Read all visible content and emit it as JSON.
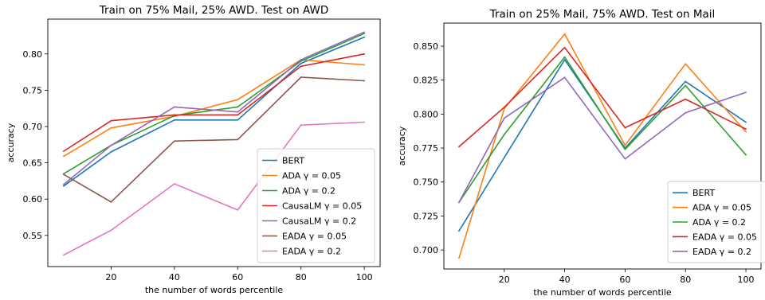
{
  "chart_data": [
    {
      "type": "line",
      "title": "Train on 75% Mail, 25% AWD. Test on AWD",
      "xlabel": "the number of words percentile",
      "ylabel": "accuracy",
      "x": [
        5,
        20,
        40,
        60,
        80,
        100
      ],
      "xlim": [
        0,
        105
      ],
      "ylim": [
        0.507,
        0.848
      ],
      "xticks": [
        20,
        40,
        60,
        80,
        100
      ],
      "yticks": [
        0.55,
        0.6,
        0.65,
        0.7,
        0.75,
        0.8
      ],
      "ytick_labels": [
        "0.55",
        "0.60",
        "0.65",
        "0.70",
        "0.75",
        "0.80"
      ],
      "grid": false,
      "legend_position": "lower-right",
      "series": [
        {
          "name": "BERT",
          "color": "#1f77b4",
          "values": [
            0.618,
            0.665,
            0.709,
            0.709,
            0.787,
            0.823
          ]
        },
        {
          "name": "ADA γ = 0.05",
          "color": "#ff7f0e",
          "values": [
            0.659,
            0.698,
            0.714,
            0.737,
            0.792,
            0.785
          ]
        },
        {
          "name": "ADA γ = 0.2",
          "color": "#2ca02c",
          "values": [
            0.635,
            0.674,
            0.715,
            0.727,
            0.79,
            0.828
          ]
        },
        {
          "name": "CausaLM γ = 0.05",
          "color": "#d62728",
          "values": [
            0.666,
            0.708,
            0.716,
            0.716,
            0.783,
            0.8
          ]
        },
        {
          "name": "CausaLM γ = 0.2",
          "color": "#9467bd",
          "values": [
            0.62,
            0.674,
            0.727,
            0.72,
            0.792,
            0.83
          ]
        },
        {
          "name": "EADA γ = 0.05",
          "color": "#8c564b",
          "values": [
            0.634,
            0.596,
            0.68,
            0.682,
            0.768,
            0.763
          ]
        },
        {
          "name": "EADA γ = 0.2",
          "color": "#e377c2",
          "values": [
            0.523,
            0.557,
            0.621,
            0.585,
            0.702,
            0.706
          ]
        }
      ]
    },
    {
      "type": "line",
      "title": "Train on 25% Mail, 75% AWD. Test on Mail",
      "xlabel": "the number of words percentile",
      "ylabel": "accuracy",
      "x": [
        5,
        20,
        40,
        60,
        80,
        100
      ],
      "xlim": [
        0,
        105
      ],
      "ylim": [
        0.686,
        0.867
      ],
      "xticks": [
        20,
        40,
        60,
        80,
        100
      ],
      "yticks": [
        0.7,
        0.725,
        0.75,
        0.775,
        0.8,
        0.825,
        0.85
      ],
      "ytick_labels": [
        "0.700",
        "0.725",
        "0.750",
        "0.775",
        "0.800",
        "0.825",
        "0.850"
      ],
      "grid": false,
      "legend_position": "lower-right",
      "series": [
        {
          "name": "BERT",
          "color": "#1f77b4",
          "values": [
            0.714,
            0.768,
            0.84,
            0.775,
            0.824,
            0.794
          ]
        },
        {
          "name": "ADA γ = 0.05",
          "color": "#ff7f0e",
          "values": [
            0.694,
            0.804,
            0.859,
            0.777,
            0.837,
            0.787
          ]
        },
        {
          "name": "ADA γ = 0.2",
          "color": "#2ca02c",
          "values": [
            0.735,
            0.785,
            0.842,
            0.774,
            0.821,
            0.77
          ]
        },
        {
          "name": "EADA γ = 0.05",
          "color": "#d62728",
          "values": [
            0.776,
            0.805,
            0.849,
            0.79,
            0.811,
            0.789
          ]
        },
        {
          "name": "EADA γ = 0.2",
          "color": "#9467bd",
          "values": [
            0.735,
            0.797,
            0.827,
            0.767,
            0.801,
            0.816
          ]
        }
      ]
    }
  ]
}
